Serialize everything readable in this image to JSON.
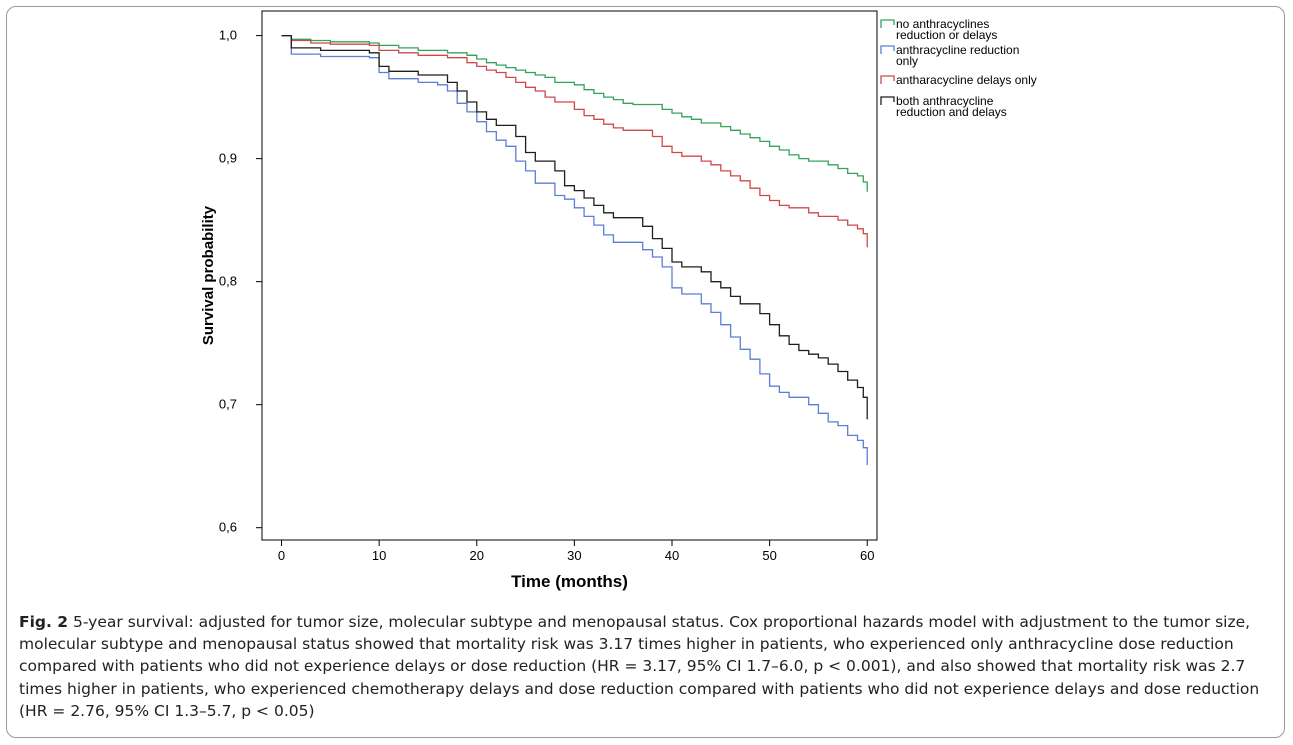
{
  "chart_data": {
    "type": "line",
    "step": true,
    "xlabel": "Time (months)",
    "ylabel": "Survival probability",
    "xlim": [
      -2,
      61
    ],
    "ylim": [
      0.59,
      1.02
    ],
    "xticks": [
      0,
      10,
      20,
      30,
      40,
      50,
      60
    ],
    "xtick_labels": [
      "0",
      "10",
      "20",
      "30",
      "40",
      "50",
      "60"
    ],
    "yticks": [
      0.6,
      0.7,
      0.8,
      0.9,
      1.0
    ],
    "ytick_labels": [
      "0,6",
      "0,7",
      "0,8",
      "0,9",
      "1,0"
    ],
    "grid": false,
    "legend_position": "right",
    "series": [
      {
        "name": "no anthracyclines reduction or delays",
        "color": "#33a35a",
        "points": [
          [
            0,
            1.0
          ],
          [
            1,
            0.997
          ],
          [
            3,
            0.996
          ],
          [
            5,
            0.995
          ],
          [
            9,
            0.994
          ],
          [
            10,
            0.992
          ],
          [
            12,
            0.99
          ],
          [
            14,
            0.988
          ],
          [
            17,
            0.986
          ],
          [
            19,
            0.984
          ],
          [
            20,
            0.981
          ],
          [
            21,
            0.978
          ],
          [
            22,
            0.976
          ],
          [
            23,
            0.974
          ],
          [
            24,
            0.972
          ],
          [
            25,
            0.97
          ],
          [
            26,
            0.968
          ],
          [
            27,
            0.966
          ],
          [
            28,
            0.962
          ],
          [
            30,
            0.96
          ],
          [
            31,
            0.956
          ],
          [
            32,
            0.953
          ],
          [
            33,
            0.95
          ],
          [
            34,
            0.948
          ],
          [
            35,
            0.945
          ],
          [
            36,
            0.944
          ],
          [
            39,
            0.94
          ],
          [
            40,
            0.937
          ],
          [
            41,
            0.934
          ],
          [
            42,
            0.932
          ],
          [
            43,
            0.929
          ],
          [
            45,
            0.926
          ],
          [
            46,
            0.923
          ],
          [
            47,
            0.92
          ],
          [
            48,
            0.917
          ],
          [
            49,
            0.914
          ],
          [
            50,
            0.91
          ],
          [
            51,
            0.907
          ],
          [
            52,
            0.903
          ],
          [
            53,
            0.9
          ],
          [
            54,
            0.898
          ],
          [
            56,
            0.895
          ],
          [
            57,
            0.892
          ],
          [
            58,
            0.888
          ],
          [
            59,
            0.886
          ],
          [
            59.6,
            0.881
          ],
          [
            60,
            0.873
          ]
        ]
      },
      {
        "name": "anthracycline reduction only",
        "color": "#5b7ed6",
        "points": [
          [
            0,
            1.0
          ],
          [
            1,
            0.985
          ],
          [
            4,
            0.983
          ],
          [
            9,
            0.982
          ],
          [
            10,
            0.97
          ],
          [
            11,
            0.965
          ],
          [
            14,
            0.962
          ],
          [
            16,
            0.96
          ],
          [
            17,
            0.955
          ],
          [
            18,
            0.945
          ],
          [
            19,
            0.938
          ],
          [
            20,
            0.93
          ],
          [
            21,
            0.922
          ],
          [
            22,
            0.915
          ],
          [
            23,
            0.91
          ],
          [
            24,
            0.898
          ],
          [
            25,
            0.89
          ],
          [
            26,
            0.88
          ],
          [
            28,
            0.87
          ],
          [
            29,
            0.867
          ],
          [
            30,
            0.86
          ],
          [
            31,
            0.853
          ],
          [
            32,
            0.846
          ],
          [
            33,
            0.838
          ],
          [
            34,
            0.832
          ],
          [
            37,
            0.826
          ],
          [
            38,
            0.82
          ],
          [
            39,
            0.812
          ],
          [
            40,
            0.795
          ],
          [
            41,
            0.79
          ],
          [
            43,
            0.782
          ],
          [
            44,
            0.775
          ],
          [
            45,
            0.765
          ],
          [
            46,
            0.755
          ],
          [
            47,
            0.745
          ],
          [
            48,
            0.737
          ],
          [
            49,
            0.725
          ],
          [
            50,
            0.715
          ],
          [
            51,
            0.71
          ],
          [
            52,
            0.706
          ],
          [
            54,
            0.7
          ],
          [
            55,
            0.693
          ],
          [
            56,
            0.686
          ],
          [
            57,
            0.683
          ],
          [
            58,
            0.675
          ],
          [
            59,
            0.671
          ],
          [
            59.6,
            0.665
          ],
          [
            60,
            0.651
          ]
        ]
      },
      {
        "name": "antharacycline delays only",
        "color": "#d04848",
        "points": [
          [
            0,
            1.0
          ],
          [
            1,
            0.996
          ],
          [
            3,
            0.994
          ],
          [
            5,
            0.993
          ],
          [
            9,
            0.992
          ],
          [
            10,
            0.988
          ],
          [
            12,
            0.986
          ],
          [
            14,
            0.984
          ],
          [
            17,
            0.982
          ],
          [
            19,
            0.978
          ],
          [
            20,
            0.975
          ],
          [
            21,
            0.972
          ],
          [
            22,
            0.97
          ],
          [
            23,
            0.966
          ],
          [
            24,
            0.962
          ],
          [
            25,
            0.958
          ],
          [
            26,
            0.955
          ],
          [
            27,
            0.95
          ],
          [
            28,
            0.946
          ],
          [
            30,
            0.94
          ],
          [
            31,
            0.935
          ],
          [
            32,
            0.932
          ],
          [
            33,
            0.928
          ],
          [
            34,
            0.925
          ],
          [
            35,
            0.923
          ],
          [
            38,
            0.918
          ],
          [
            39,
            0.91
          ],
          [
            40,
            0.905
          ],
          [
            41,
            0.902
          ],
          [
            43,
            0.898
          ],
          [
            44,
            0.895
          ],
          [
            45,
            0.89
          ],
          [
            46,
            0.886
          ],
          [
            47,
            0.882
          ],
          [
            48,
            0.876
          ],
          [
            49,
            0.87
          ],
          [
            50,
            0.866
          ],
          [
            51,
            0.862
          ],
          [
            52,
            0.86
          ],
          [
            54,
            0.856
          ],
          [
            55,
            0.853
          ],
          [
            57,
            0.85
          ],
          [
            58,
            0.846
          ],
          [
            59,
            0.843
          ],
          [
            59.6,
            0.839
          ],
          [
            60,
            0.828
          ]
        ]
      },
      {
        "name": "both anthracycline reduction and delays",
        "color": "#1e1e1e",
        "points": [
          [
            0,
            1.0
          ],
          [
            1,
            0.99
          ],
          [
            4,
            0.988
          ],
          [
            9,
            0.986
          ],
          [
            10,
            0.975
          ],
          [
            11,
            0.971
          ],
          [
            14,
            0.968
          ],
          [
            17,
            0.962
          ],
          [
            18,
            0.955
          ],
          [
            19,
            0.946
          ],
          [
            20,
            0.938
          ],
          [
            21,
            0.932
          ],
          [
            22,
            0.927
          ],
          [
            24,
            0.918
          ],
          [
            25,
            0.905
          ],
          [
            26,
            0.898
          ],
          [
            28,
            0.89
          ],
          [
            29,
            0.878
          ],
          [
            30,
            0.874
          ],
          [
            31,
            0.868
          ],
          [
            32,
            0.862
          ],
          [
            33,
            0.856
          ],
          [
            34,
            0.852
          ],
          [
            37,
            0.845
          ],
          [
            38,
            0.835
          ],
          [
            39,
            0.827
          ],
          [
            40,
            0.816
          ],
          [
            41,
            0.812
          ],
          [
            43,
            0.808
          ],
          [
            44,
            0.8
          ],
          [
            45,
            0.795
          ],
          [
            46,
            0.788
          ],
          [
            47,
            0.782
          ],
          [
            49,
            0.774
          ],
          [
            50,
            0.765
          ],
          [
            51,
            0.756
          ],
          [
            52,
            0.749
          ],
          [
            53,
            0.744
          ],
          [
            54,
            0.741
          ],
          [
            55,
            0.738
          ],
          [
            56,
            0.733
          ],
          [
            57,
            0.727
          ],
          [
            58,
            0.72
          ],
          [
            59,
            0.714
          ],
          [
            59.6,
            0.706
          ],
          [
            60,
            0.688
          ]
        ]
      }
    ]
  },
  "legend": {
    "items": [
      {
        "lines": [
          "no anthracyclines",
          "reduction or delays"
        ],
        "color": "#33a35a"
      },
      {
        "lines": [
          "anthracycline reduction",
          "only"
        ],
        "color": "#5b7ed6"
      },
      {
        "lines": [
          "antharacycline delays only"
        ],
        "color": "#d04848"
      },
      {
        "lines": [
          "both anthracycline",
          "reduction and delays"
        ],
        "color": "#1e1e1e"
      }
    ]
  },
  "caption": {
    "label": "Fig. 2",
    "text": " 5-year survival: adjusted for tumor size, molecular subtype and menopausal status. Cox proportional hazards model with adjustment to the tumor size, molecular subtype and menopausal status showed that mortality risk was 3.17 times higher in patients, who experienced only anthracycline dose reduction compared with patients who did not experience delays or dose reduction (HR = 3.17, 95% CI 1.7–6.0, p < 0.001), and also showed that mortality risk was 2.7 times higher in patients, who experienced chemotherapy delays and dose reduction compared with patients who did not experience delays and dose reduction (HR = 2.76, 95% CI 1.3–5.7, p < 0.05)"
  }
}
